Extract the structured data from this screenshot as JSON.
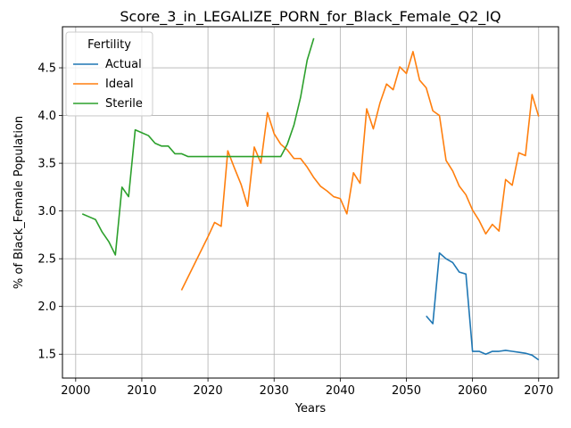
{
  "chart_data": {
    "type": "line",
    "title": "Score_3_in_LEGALIZE_PORN_for_Black_Female_Q2_IQ",
    "xlabel": "Years",
    "ylabel": "% of Black_Female Population",
    "xlim": [
      1998,
      2073
    ],
    "ylim": [
      1.25,
      4.93
    ],
    "xticks": [
      2000,
      2010,
      2020,
      2030,
      2040,
      2050,
      2060,
      2070
    ],
    "yticks": [
      1.5,
      2.0,
      2.5,
      3.0,
      3.5,
      4.0,
      4.5
    ],
    "xtick_labels": [
      "2000",
      "2010",
      "2020",
      "2030",
      "2040",
      "2050",
      "2060",
      "2070"
    ],
    "ytick_labels": [
      "1.5",
      "2.0",
      "2.5",
      "3.0",
      "3.5",
      "4.0",
      "4.5"
    ],
    "grid": true,
    "legend": {
      "title": "Fertility",
      "placement": "top-left"
    },
    "series": [
      {
        "name": "Actual",
        "color": "#1f77b4",
        "x": [
          2053,
          2054,
          2055,
          2056,
          2057,
          2058,
          2059,
          2060,
          2061,
          2062,
          2063,
          2064,
          2065,
          2066,
          2067,
          2068,
          2069,
          2070
        ],
        "y": [
          1.9,
          1.82,
          2.56,
          2.5,
          2.46,
          2.36,
          2.34,
          1.53,
          1.53,
          1.5,
          1.53,
          1.53,
          1.54,
          1.53,
          1.52,
          1.51,
          1.49,
          1.44
        ]
      },
      {
        "name": "Ideal",
        "color": "#ff7f0e",
        "x": [
          2016,
          2017,
          2018,
          2019,
          2020,
          2021,
          2022,
          2023,
          2024,
          2025,
          2026,
          2027,
          2028,
          2029,
          2030,
          2031,
          2032,
          2033,
          2034,
          2035,
          2036,
          2037,
          2038,
          2039,
          2040,
          2041,
          2042,
          2043,
          2044,
          2045,
          2046,
          2047,
          2048,
          2049,
          2050,
          2051,
          2052,
          2053,
          2054,
          2055,
          2056,
          2057,
          2058,
          2059,
          2060,
          2061,
          2062,
          2063,
          2064,
          2065,
          2066,
          2067,
          2068,
          2069,
          2070
        ],
        "y": [
          2.17,
          2.31,
          2.45,
          2.59,
          2.73,
          2.88,
          2.84,
          3.63,
          3.45,
          3.28,
          3.05,
          3.67,
          3.5,
          4.03,
          3.81,
          3.7,
          3.64,
          3.55,
          3.55,
          3.46,
          3.35,
          3.26,
          3.21,
          3.15,
          3.13,
          2.97,
          3.4,
          3.29,
          4.07,
          3.86,
          4.13,
          4.33,
          4.27,
          4.51,
          4.44,
          4.67,
          4.37,
          4.29,
          4.05,
          4.0,
          3.53,
          3.42,
          3.26,
          3.17,
          3.01,
          2.9,
          2.76,
          2.86,
          2.79,
          3.33,
          3.27,
          3.61,
          3.58,
          4.22,
          3.99
        ]
      },
      {
        "name": "Sterile",
        "color": "#2ca02c",
        "x": [
          2001,
          2002,
          2003,
          2004,
          2005,
          2006,
          2007,
          2008,
          2009,
          2010,
          2011,
          2012,
          2013,
          2014,
          2015,
          2016,
          2017,
          2018,
          2019,
          2020,
          2021,
          2022,
          2023,
          2024,
          2025,
          2026,
          2027,
          2028,
          2029,
          2030,
          2031,
          2032,
          2033,
          2034,
          2035,
          2036
        ],
        "y": [
          2.97,
          2.94,
          2.91,
          2.78,
          2.68,
          2.54,
          3.25,
          3.15,
          3.85,
          3.82,
          3.79,
          3.71,
          3.68,
          3.68,
          3.6,
          3.6,
          3.57,
          3.57,
          3.57,
          3.57,
          3.57,
          3.57,
          3.57,
          3.57,
          3.57,
          3.57,
          3.57,
          3.57,
          3.57,
          3.57,
          3.57,
          3.7,
          3.9,
          4.19,
          4.58,
          4.81
        ]
      }
    ]
  }
}
